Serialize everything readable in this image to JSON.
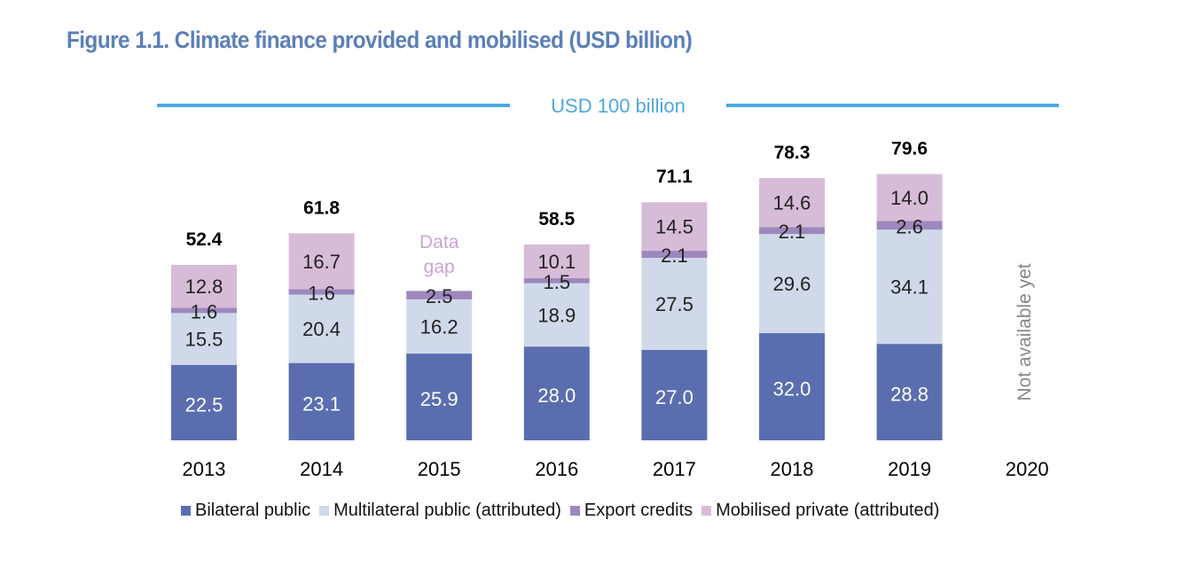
{
  "chart_data": {
    "type": "bar",
    "stacked": true,
    "title": "Figure 1.1. Climate finance provided and mobilised (USD billion)",
    "xlabel": "",
    "ylabel": "",
    "ylim": [
      0,
      100
    ],
    "grid": false,
    "categories": [
      "2013",
      "2014",
      "2015",
      "2016",
      "2017",
      "2018",
      "2019",
      "2020"
    ],
    "series": [
      {
        "name": "Bilateral public",
        "color": "#5a6eaf",
        "label_color": "#ffffff",
        "values": [
          22.5,
          23.1,
          25.9,
          28.0,
          27.0,
          32.0,
          28.8,
          null
        ]
      },
      {
        "name": "Multilateral public (attributed)",
        "color": "#cfd9ea",
        "label_color": "#222222",
        "values": [
          15.5,
          20.4,
          16.2,
          18.9,
          27.5,
          29.6,
          34.1,
          null
        ]
      },
      {
        "name": "Export credits",
        "color": "#9d88bd",
        "label_color": "#222222",
        "values": [
          1.6,
          1.6,
          2.5,
          1.5,
          2.1,
          2.1,
          2.6,
          null
        ]
      },
      {
        "name": "Mobilised private (attributed)",
        "color": "#d7bcd7",
        "label_color": "#222222",
        "values": [
          12.8,
          16.7,
          null,
          10.1,
          14.5,
          14.6,
          14.0,
          null
        ]
      }
    ],
    "totals": [
      "52.4",
      "61.8",
      null,
      "58.5",
      "71.1",
      "78.3",
      "79.6",
      null
    ],
    "annotations": {
      "target_line": {
        "value": 100,
        "label": "USD 100 billion",
        "color": "#4fa8dc"
      },
      "data_gap": {
        "category": "2015",
        "label_line1": "Data",
        "label_line2": "gap",
        "color": "#c9a6cf"
      },
      "not_available": {
        "category": "2020",
        "label": "Not available yet",
        "color": "#888888"
      }
    },
    "legend": {
      "position": "bottom"
    }
  }
}
